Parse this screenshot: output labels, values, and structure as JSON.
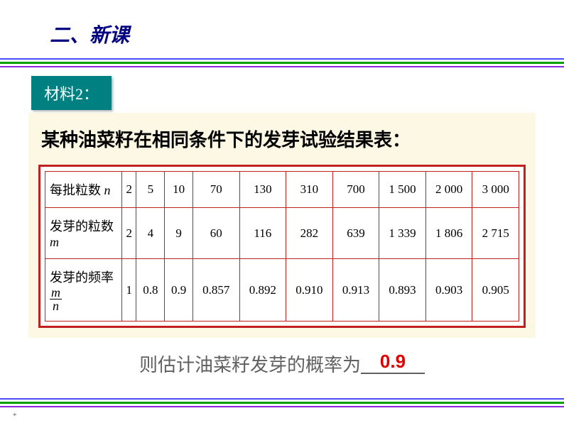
{
  "header": {
    "title": "二、新课"
  },
  "label": {
    "text": "材料2："
  },
  "content": {
    "title": "某种油菜籽在相同条件下的发芽试验结果表：",
    "table": {
      "row1_label": "每批粒数",
      "row1_var": "n",
      "row2_label": "发芽的粒数",
      "row2_var": "m",
      "row3_label": "发芽的频率",
      "row3_num": "m",
      "row3_den": "n",
      "n_values": [
        "2",
        "5",
        "10",
        "70",
        "130",
        "310",
        "700",
        "1 500",
        "2 000",
        "3 000"
      ],
      "m_values": [
        "2",
        "4",
        "9",
        "60",
        "116",
        "282",
        "639",
        "1 339",
        "1 806",
        "2 715"
      ],
      "freq_values": [
        "1",
        "0.8",
        "0.9",
        "0.857",
        "0.892",
        "0.910",
        "0.913",
        "0.893",
        "0.903",
        "0.905"
      ]
    }
  },
  "footer": {
    "text": "则估计油菜籽发芽的概率为",
    "answer": "0.9"
  },
  "colors": {
    "header_blue": "#4a4aff",
    "header_green": "#00a000",
    "header_purple": "#8a2be2",
    "label_bg": "#008080",
    "content_bg": "#fcf8e3",
    "table_border": "#c02020",
    "answer_color": "#e00000"
  }
}
